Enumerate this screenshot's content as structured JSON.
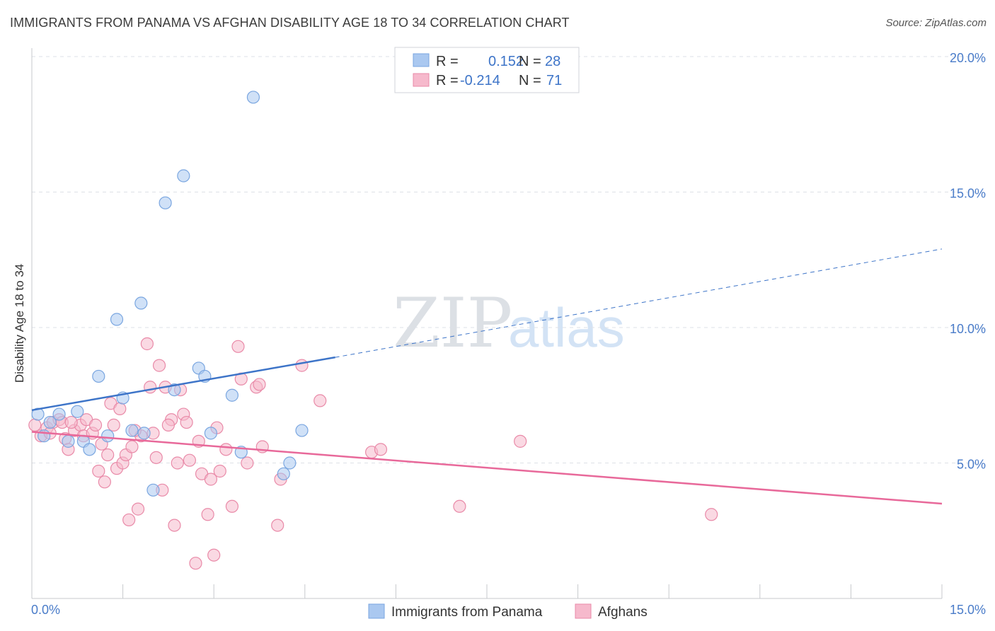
{
  "header": {
    "title": "IMMIGRANTS FROM PANAMA VS AFGHAN DISABILITY AGE 18 TO 34 CORRELATION CHART",
    "source": "Source: ZipAtlas.com"
  },
  "watermark": {
    "zip": "ZIP",
    "atlas": "atlas"
  },
  "legend": {
    "r_label": "R =",
    "n_label": "N =",
    "rows": [
      {
        "r": "0.152",
        "n": "28",
        "color": "#aac8f0"
      },
      {
        "r": "-0.214",
        "n": "71",
        "color": "#f6b9cc"
      }
    ]
  },
  "bottom_legend": [
    {
      "label": "Immigrants from Panama",
      "color": "#aac8f0"
    },
    {
      "label": "Afghans",
      "color": "#f6b9cc"
    }
  ],
  "colors": {
    "panama_fill": "#aac8f0",
    "panama_stroke": "#7aa6e0",
    "panama_line": "#3d74c8",
    "afghan_fill": "#f6b9cc",
    "afghan_stroke": "#e98aa8",
    "afghan_line": "#e8699a",
    "grid": "#dde1e7",
    "tick_text": "#4a7cc9"
  },
  "chart_data": {
    "type": "scatter",
    "title": "IMMIGRANTS FROM PANAMA VS AFGHAN DISABILITY AGE 18 TO 34 CORRELATION CHART",
    "xlabel": "",
    "ylabel": "Disability Age 18 to 34",
    "xlim": [
      0,
      15
    ],
    "ylim": [
      0,
      20
    ],
    "x_tick_labels": [
      "0.0%",
      "15.0%"
    ],
    "y_ticks": [
      5,
      10,
      15,
      20
    ],
    "y_tick_labels": [
      "5.0%",
      "10.0%",
      "15.0%",
      "20.0%"
    ],
    "grid": true,
    "legend_position": "top-center",
    "series": [
      {
        "name": "Immigrants from Panama",
        "r": 0.152,
        "n": 28,
        "points": [
          [
            0.1,
            6.8
          ],
          [
            0.2,
            6.0
          ],
          [
            0.3,
            6.5
          ],
          [
            0.45,
            6.8
          ],
          [
            0.6,
            5.8
          ],
          [
            0.75,
            6.9
          ],
          [
            0.85,
            5.8
          ],
          [
            0.95,
            5.5
          ],
          [
            1.1,
            8.2
          ],
          [
            1.25,
            6.0
          ],
          [
            1.4,
            10.3
          ],
          [
            1.5,
            7.4
          ],
          [
            1.65,
            6.2
          ],
          [
            1.8,
            10.9
          ],
          [
            1.85,
            6.1
          ],
          [
            2.0,
            4.0
          ],
          [
            2.2,
            14.6
          ],
          [
            2.35,
            7.7
          ],
          [
            2.5,
            15.6
          ],
          [
            2.75,
            8.5
          ],
          [
            2.85,
            8.2
          ],
          [
            2.95,
            6.1
          ],
          [
            3.3,
            7.5
          ],
          [
            3.45,
            5.4
          ],
          [
            3.65,
            18.5
          ],
          [
            4.15,
            4.6
          ],
          [
            4.25,
            5.0
          ],
          [
            4.45,
            6.2
          ]
        ],
        "trend_solid": [
          [
            0,
            6.95
          ],
          [
            5.0,
            8.9
          ]
        ],
        "trend_dashed": [
          [
            5.0,
            8.9
          ],
          [
            15,
            12.9
          ]
        ]
      },
      {
        "name": "Afghans",
        "r": -0.214,
        "n": 71,
        "points": [
          [
            0.05,
            6.4
          ],
          [
            0.15,
            6.0
          ],
          [
            0.25,
            6.3
          ],
          [
            0.35,
            6.5
          ],
          [
            0.45,
            6.6
          ],
          [
            0.5,
            6.5
          ],
          [
            0.55,
            5.9
          ],
          [
            0.6,
            5.5
          ],
          [
            0.7,
            6.2
          ],
          [
            0.8,
            6.4
          ],
          [
            0.85,
            6.0
          ],
          [
            0.9,
            6.6
          ],
          [
            1.0,
            6.1
          ],
          [
            1.05,
            6.4
          ],
          [
            1.1,
            4.7
          ],
          [
            1.15,
            5.7
          ],
          [
            1.2,
            4.3
          ],
          [
            1.3,
            7.2
          ],
          [
            1.35,
            6.4
          ],
          [
            1.4,
            4.8
          ],
          [
            1.45,
            7.0
          ],
          [
            1.5,
            5.0
          ],
          [
            1.55,
            5.3
          ],
          [
            1.6,
            2.9
          ],
          [
            1.65,
            5.6
          ],
          [
            1.75,
            3.3
          ],
          [
            1.8,
            6.0
          ],
          [
            1.9,
            9.4
          ],
          [
            1.95,
            7.8
          ],
          [
            2.0,
            6.1
          ],
          [
            2.05,
            5.2
          ],
          [
            2.1,
            8.6
          ],
          [
            2.15,
            4.0
          ],
          [
            2.2,
            7.8
          ],
          [
            2.3,
            6.6
          ],
          [
            2.35,
            2.7
          ],
          [
            2.4,
            5.0
          ],
          [
            2.45,
            7.7
          ],
          [
            2.5,
            6.8
          ],
          [
            2.55,
            6.5
          ],
          [
            2.6,
            5.1
          ],
          [
            2.7,
            1.3
          ],
          [
            2.75,
            5.8
          ],
          [
            2.8,
            4.6
          ],
          [
            2.9,
            3.1
          ],
          [
            2.95,
            4.4
          ],
          [
            3.0,
            1.6
          ],
          [
            3.05,
            6.3
          ],
          [
            3.1,
            4.7
          ],
          [
            3.2,
            5.5
          ],
          [
            3.3,
            3.4
          ],
          [
            3.4,
            9.3
          ],
          [
            3.45,
            8.1
          ],
          [
            3.55,
            5.0
          ],
          [
            3.7,
            7.8
          ],
          [
            3.75,
            7.9
          ],
          [
            3.8,
            5.6
          ],
          [
            4.05,
            2.7
          ],
          [
            4.1,
            4.4
          ],
          [
            4.45,
            8.6
          ],
          [
            4.75,
            7.3
          ],
          [
            5.6,
            5.4
          ],
          [
            5.75,
            5.5
          ],
          [
            7.05,
            3.4
          ],
          [
            8.05,
            5.8
          ],
          [
            11.2,
            3.1
          ],
          [
            0.3,
            6.1
          ],
          [
            0.65,
            6.5
          ],
          [
            1.25,
            5.3
          ],
          [
            2.25,
            6.4
          ],
          [
            1.7,
            6.2
          ]
        ],
        "trend_solid": [
          [
            0,
            6.15
          ],
          [
            15,
            3.5
          ]
        ]
      }
    ]
  }
}
